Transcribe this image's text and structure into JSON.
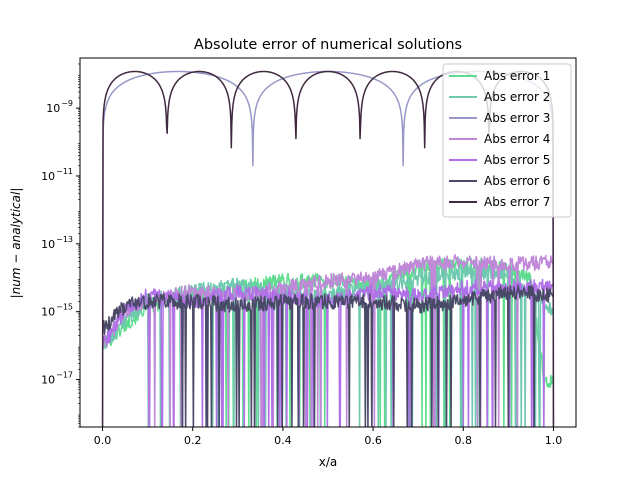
{
  "chart_data": {
    "type": "line",
    "title": "Absolute error of numerical solutions",
    "xlabel": "x/a",
    "ylabel": "|num − analytical|",
    "yscale": "log",
    "xlim": [
      -0.05,
      1.05
    ],
    "ylim": [
      4e-19,
      3e-08
    ],
    "x_ticks": [
      0.0,
      0.2,
      0.4,
      0.6,
      0.8,
      1.0
    ],
    "x_tick_labels": [
      "0.0",
      "0.2",
      "0.4",
      "0.6",
      "0.8",
      "1.0"
    ],
    "y_ticks": [
      1e-17,
      1e-15,
      1e-13,
      1e-11,
      1e-09
    ],
    "y_tick_labels": [
      {
        "base": "10",
        "exp": "−17"
      },
      {
        "base": "10",
        "exp": "−15"
      },
      {
        "base": "10",
        "exp": "−13"
      },
      {
        "base": "10",
        "exp": "−11"
      },
      {
        "base": "10",
        "exp": "−9"
      }
    ],
    "grid": false,
    "legend_position": "top-right",
    "series": [
      {
        "name": "Abs error 1",
        "color": "#5fdd8f",
        "kind": "noise",
        "points": [
          [
            0.0,
            1e-16
          ],
          [
            0.05,
            4e-16
          ],
          [
            0.1,
            1.5e-15
          ],
          [
            0.2,
            3e-15
          ],
          [
            0.3,
            5e-15
          ],
          [
            0.4,
            8e-15
          ],
          [
            0.5,
            8e-15
          ],
          [
            0.6,
            6e-15
          ],
          [
            0.7,
            2e-14
          ],
          [
            0.8,
            2.5e-14
          ],
          [
            0.9,
            2e-14
          ],
          [
            0.95,
            8e-15
          ],
          [
            0.98,
            1e-17
          ],
          [
            1.0,
            1e-17
          ]
        ]
      },
      {
        "name": "Abs error 2",
        "color": "#6fc8b0",
        "kind": "noise",
        "points": [
          [
            0.0,
            1e-16
          ],
          [
            0.05,
            6e-16
          ],
          [
            0.1,
            2e-15
          ],
          [
            0.2,
            4e-15
          ],
          [
            0.3,
            6e-15
          ],
          [
            0.4,
            4e-15
          ],
          [
            0.5,
            3e-15
          ],
          [
            0.6,
            5e-15
          ],
          [
            0.7,
            1e-14
          ],
          [
            0.8,
            1.5e-14
          ],
          [
            0.9,
            1.5e-14
          ],
          [
            1.0,
            1e-15
          ]
        ]
      },
      {
        "name": "Abs error 3",
        "color": "#9898c8",
        "kind": "nodes",
        "peak": 1.2e-08,
        "zeros": [
          0.0,
          0.3333,
          0.6667,
          1.0
        ],
        "dip": 2e-11
      },
      {
        "name": "Abs error 4",
        "color": "#c088d8",
        "kind": "noise",
        "points": [
          [
            0.0,
            1e-16
          ],
          [
            0.05,
            1e-15
          ],
          [
            0.1,
            2e-15
          ],
          [
            0.2,
            4e-15
          ],
          [
            0.3,
            3e-15
          ],
          [
            0.4,
            5e-15
          ],
          [
            0.5,
            8e-15
          ],
          [
            0.6,
            1e-14
          ],
          [
            0.7,
            2.5e-14
          ],
          [
            0.8,
            3e-14
          ],
          [
            0.9,
            2.5e-14
          ],
          [
            1.0,
            3e-14
          ]
        ]
      },
      {
        "name": "Abs error 5",
        "color": "#b070e8",
        "kind": "noise",
        "points": [
          [
            0.0,
            1e-16
          ],
          [
            0.05,
            1e-15
          ],
          [
            0.1,
            3e-15
          ],
          [
            0.2,
            2e-15
          ],
          [
            0.3,
            4e-15
          ],
          [
            0.4,
            3e-15
          ],
          [
            0.5,
            2e-15
          ],
          [
            0.6,
            4e-15
          ],
          [
            0.7,
            3e-15
          ],
          [
            0.8,
            5e-15
          ],
          [
            0.9,
            5e-15
          ],
          [
            1.0,
            6e-15
          ]
        ]
      },
      {
        "name": "Abs error 6",
        "color": "#4a4a68",
        "kind": "noise",
        "points": [
          [
            0.0,
            3e-16
          ],
          [
            0.05,
            1.5e-15
          ],
          [
            0.1,
            2e-15
          ],
          [
            0.2,
            2e-15
          ],
          [
            0.3,
            1.5e-15
          ],
          [
            0.4,
            2e-15
          ],
          [
            0.5,
            2e-15
          ],
          [
            0.6,
            2e-15
          ],
          [
            0.7,
            1.5e-15
          ],
          [
            0.8,
            2e-15
          ],
          [
            0.9,
            4e-15
          ],
          [
            1.0,
            3e-15
          ]
        ]
      },
      {
        "name": "Abs error 7",
        "color": "#3f2a3f",
        "kind": "nodes",
        "peak": 1.2e-08,
        "zeros": [
          0.0,
          0.1429,
          0.2857,
          0.4286,
          0.5714,
          0.7143,
          0.8571,
          1.0
        ],
        "dip": 2e-11
      }
    ]
  }
}
